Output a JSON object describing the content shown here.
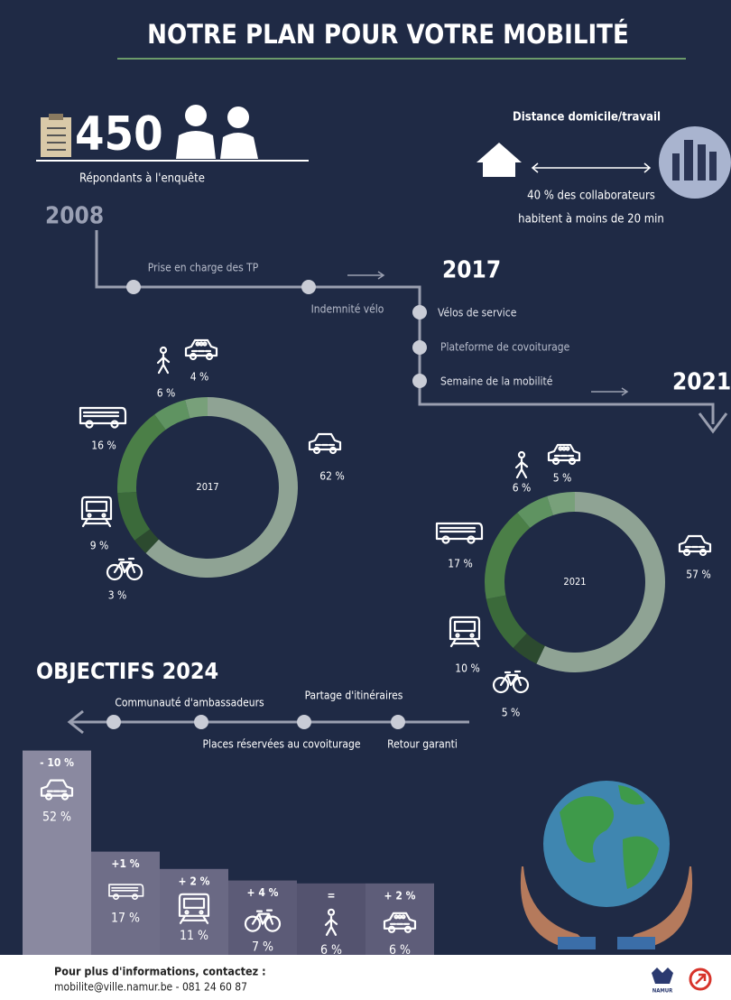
{
  "title": "NOTRE PLAN POUR VOTRE MOBILITÉ",
  "respondents": {
    "count": "450",
    "label": "Répondants à l'enquête"
  },
  "distance": {
    "title": "Distance domicile/travail",
    "lines": [
      "40 % des collaborateurs",
      "habitent à moins de 20 min"
    ]
  },
  "timeline": {
    "years": [
      "2008",
      "2017",
      "2021"
    ],
    "steps": [
      "Prise en charge  des TP",
      "Indemnité vélo",
      "Vélos de service",
      "Plateforme de covoiturage",
      "Semaine de la mobilité"
    ]
  },
  "donuts": [
    {
      "label": "2017",
      "values": [
        62,
        3,
        9,
        16,
        6,
        4
      ],
      "value_labels": [
        "62 %",
        "3 %",
        "9 %",
        "16 %",
        "6 %",
        "4 %"
      ]
    },
    {
      "label": "2021",
      "values": [
        57,
        5,
        10,
        17,
        6,
        5
      ],
      "value_labels": [
        "57 %",
        "5 %",
        "10 %",
        "17 %",
        "6 %",
        "5 %"
      ]
    }
  ],
  "objectives": {
    "title": "OBJECTIFS 2024",
    "actions": [
      "Communauté d'ambassadeurs",
      "Places réservées au covoiturage",
      "Partage d'itinéraires",
      "Retour garanti"
    ],
    "changes": [
      "- 10 %",
      "+1 %",
      "+ 2 %",
      "+ 4 %",
      "=",
      "+ 2 %"
    ],
    "values": [
      52,
      17,
      11,
      7,
      6,
      6
    ],
    "value_labels": [
      "52 %",
      "17 %",
      "11 %",
      "7 %",
      "6 %",
      "6 %"
    ]
  },
  "footer": {
    "heading": "Pour plus d'informations, contactez :",
    "contact": "mobilite@ville.namur.be - 081 24 60 87",
    "logo": "NAMUR"
  }
}
